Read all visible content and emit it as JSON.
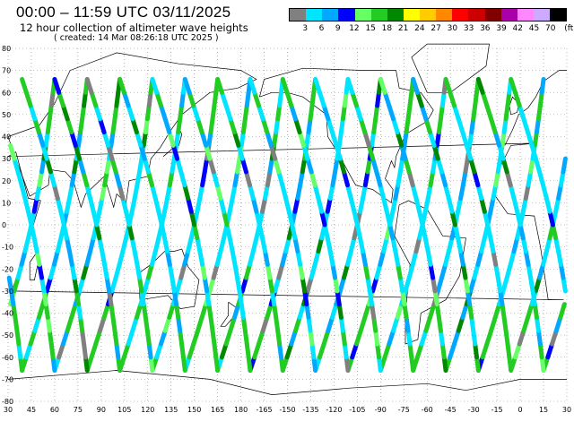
{
  "header": {
    "title": "00:00 – 11:59 UTC 03/11/2025",
    "subtitle": "12 hour collection of altimeter wave heights",
    "created": "( created: 14 Mar 08:26:18 UTC 2025 )"
  },
  "legend": {
    "unit": "(ft)",
    "labels": [
      "3",
      "6",
      "9",
      "12",
      "15",
      "18",
      "21",
      "24",
      "27",
      "30",
      "33",
      "36",
      "39",
      "42",
      "45",
      "70"
    ],
    "colors": [
      "#808080",
      "#00e5ff",
      "#00a8ff",
      "#0000ff",
      "#66ff66",
      "#22cc22",
      "#008800",
      "#ffff00",
      "#ffcc00",
      "#ff8800",
      "#ff0000",
      "#cc0000",
      "#800000",
      "#aa00aa",
      "#ff88ff",
      "#ccaaff",
      "#000000"
    ]
  },
  "axes": {
    "lat_labels": [
      "80",
      "70",
      "60",
      "50",
      "40",
      "30",
      "20",
      "10",
      "0",
      "-10",
      "-20",
      "-30",
      "-40",
      "-50",
      "-60",
      "-70",
      "-80"
    ],
    "lon_labels": [
      "30",
      "45",
      "60",
      "75",
      "90",
      "105",
      "120",
      "135",
      "150",
      "165",
      "180",
      "-165",
      "-150",
      "-135",
      "-120",
      "-105",
      "-90",
      "-75",
      "-60",
      "-45",
      "-30",
      "-15",
      "0",
      "15",
      "30"
    ]
  },
  "chart_data": {
    "type": "map",
    "projection": "cylindrical equidistant, 30E to 390E, 80S to 80N",
    "grid": "dotted, every 15 degrees longitude and 10 degrees latitude",
    "value_unit": "ft",
    "tracks_description": "Satellite altimeter ground tracks colored by significant wave height"
  }
}
